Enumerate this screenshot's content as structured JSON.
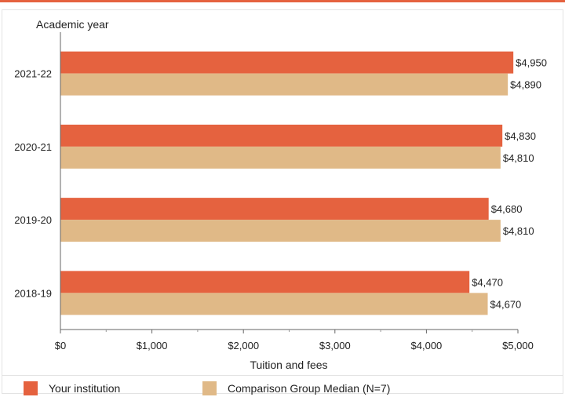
{
  "chart_data": {
    "type": "bar",
    "orientation": "horizontal",
    "y_axis_title": "Academic year",
    "xlabel": "Tuition and fees",
    "categories": [
      "2021-22",
      "2020-21",
      "2019-20",
      "2018-19"
    ],
    "series": [
      {
        "name": "Your institution",
        "color": "#e5623f",
        "values": [
          4950,
          4830,
          4680,
          4470
        ],
        "labels": [
          "$4,950",
          "$4,830",
          "$4,680",
          "$4,470"
        ]
      },
      {
        "name": "Comparison Group Median (N=7)",
        "color": "#e0b987",
        "values": [
          4890,
          4810,
          4810,
          4670
        ],
        "labels": [
          "$4,890",
          "$4,810",
          "$4,810",
          "$4,670"
        ]
      }
    ],
    "xlim": [
      0,
      5000
    ],
    "x_ticks": [
      0,
      1000,
      2000,
      3000,
      4000,
      5000
    ],
    "x_tick_labels": [
      "$0",
      "$1,000",
      "$2,000",
      "$3,000",
      "$4,000",
      "$5,000"
    ],
    "grid": false,
    "legend_position": "bottom"
  }
}
